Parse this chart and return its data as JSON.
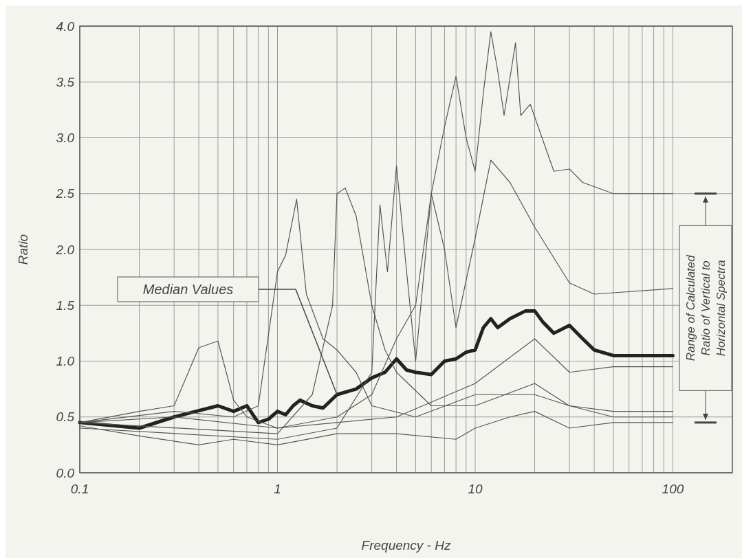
{
  "chart_data": {
    "type": "line",
    "xlabel": "Frequency - Hz",
    "ylabel": "Ratio",
    "log": "x",
    "grid": true,
    "marker": "none",
    "line_style": "solid",
    "xlim": [
      0.1,
      200
    ],
    "xticks": [
      0.1,
      1,
      10,
      100
    ],
    "ylim": [
      0,
      4
    ],
    "yticks": [
      {
        "value": 0,
        "label": "0.0"
      },
      {
        "value": 0.5,
        "label": "0.5"
      },
      {
        "value": 1,
        "label": "1.0"
      },
      {
        "value": 1.5,
        "label": "1.5"
      },
      {
        "value": 2,
        "label": "2.0"
      },
      {
        "value": 2.5,
        "label": "2.5"
      },
      {
        "value": 3,
        "label": "3.0"
      },
      {
        "value": 3.5,
        "label": "3.5"
      },
      {
        "value": 4,
        "label": "4.0"
      }
    ],
    "annotations": [
      "Median Values",
      "Range of Calculated Ratio of Vertical to Horizontal Spectra"
    ],
    "series": [
      {
        "color": "#222222",
        "x": [
          0.1,
          0.2,
          0.3,
          0.5,
          0.6,
          0.7,
          0.8,
          0.9,
          1,
          1.1,
          1.2,
          1.3,
          1.5,
          1.7,
          2,
          2.5,
          3,
          3.5,
          4,
          4.5,
          5,
          6,
          7,
          8,
          9,
          10,
          11,
          12,
          13,
          15,
          18,
          20,
          22,
          25,
          30,
          35,
          40,
          50,
          100
        ],
        "values": [
          0.45,
          0.4,
          0.5,
          0.6,
          0.55,
          0.6,
          0.45,
          0.48,
          0.55,
          0.52,
          0.6,
          0.65,
          0.6,
          0.58,
          0.7,
          0.75,
          0.85,
          0.9,
          1.02,
          0.92,
          0.9,
          0.88,
          1,
          1.02,
          1.08,
          1.1,
          1.3,
          1.38,
          1.3,
          1.38,
          1.45,
          1.45,
          1.35,
          1.25,
          1.32,
          1.2,
          1.1,
          1.05,
          1.05
        ]
      },
      {
        "color": "#555555",
        "x": [
          0.1,
          0.3,
          1,
          2,
          3,
          4,
          5,
          6,
          7,
          8,
          9,
          10,
          11,
          12,
          13,
          14,
          16,
          17,
          19,
          25,
          30,
          35,
          50,
          100
        ],
        "values": [
          0.45,
          0.5,
          0.4,
          0.5,
          0.7,
          1.2,
          1.5,
          2.5,
          3.1,
          3.55,
          3,
          2.7,
          3.4,
          3.95,
          3.6,
          3.2,
          3.85,
          3.2,
          3.3,
          2.7,
          2.72,
          2.6,
          2.5,
          2.5
        ]
      },
      {
        "color": "#555555",
        "x": [
          0.1,
          0.3,
          0.6,
          0.8,
          1,
          1.1,
          1.25,
          1.4,
          1.7,
          2,
          2.5,
          3,
          5,
          10,
          20,
          30,
          50,
          100
        ],
        "values": [
          0.45,
          0.55,
          0.5,
          0.6,
          1.8,
          1.95,
          2.45,
          1.6,
          1.2,
          1.1,
          0.9,
          0.6,
          0.5,
          0.7,
          0.7,
          0.6,
          0.55,
          0.55
        ]
      },
      {
        "color": "#555555",
        "x": [
          0.1,
          1,
          1.5,
          1.9,
          2,
          2.2,
          2.5,
          3,
          3.5,
          4,
          6,
          10,
          20,
          30,
          50,
          100
        ],
        "values": [
          0.45,
          0.35,
          0.7,
          1.5,
          2.5,
          2.55,
          2.3,
          1.5,
          1.1,
          0.9,
          0.6,
          0.6,
          0.8,
          0.6,
          0.5,
          0.5
        ]
      },
      {
        "color": "#555555",
        "x": [
          0.1,
          0.2,
          0.3,
          0.4,
          0.5,
          0.6,
          0.7,
          1,
          2,
          4,
          10,
          20,
          30,
          50,
          100
        ],
        "values": [
          0.45,
          0.55,
          0.6,
          1.12,
          1.18,
          0.65,
          0.5,
          0.4,
          0.45,
          0.5,
          0.8,
          1.2,
          0.9,
          0.95,
          0.95
        ]
      },
      {
        "color": "#555555",
        "x": [
          0.1,
          1,
          2,
          3,
          3.3,
          3.6,
          4,
          4.5,
          5,
          6,
          7,
          8,
          10,
          12,
          15,
          20,
          30,
          40,
          100
        ],
        "values": [
          0.4,
          0.3,
          0.4,
          0.9,
          2.4,
          1.8,
          2.75,
          1.8,
          1,
          2.5,
          2,
          1.3,
          2.1,
          2.8,
          2.6,
          2.2,
          1.7,
          1.6,
          1.65
        ]
      },
      {
        "color": "#555555",
        "x": [
          0.1,
          0.2,
          0.4,
          0.6,
          1,
          2,
          4,
          8,
          10,
          15,
          20,
          30,
          50,
          100
        ],
        "values": [
          0.42,
          0.33,
          0.25,
          0.3,
          0.25,
          0.35,
          0.35,
          0.3,
          0.4,
          0.5,
          0.55,
          0.4,
          0.45,
          0.45
        ]
      }
    ]
  }
}
